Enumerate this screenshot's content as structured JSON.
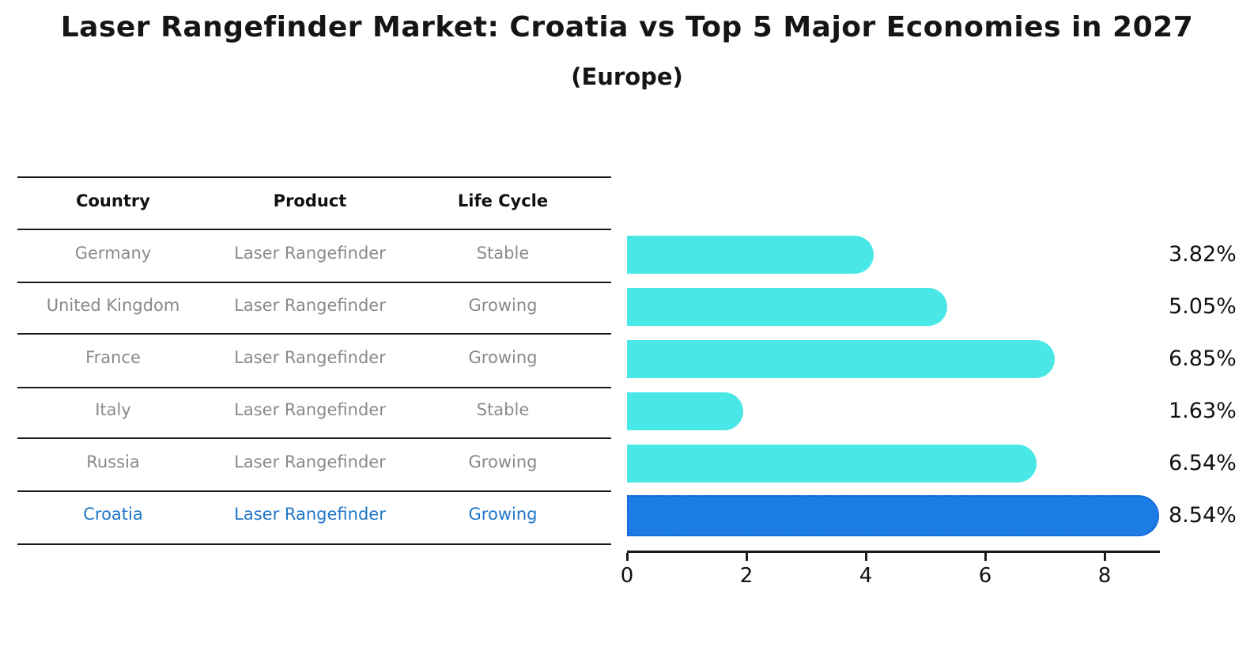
{
  "title": "Laser Rangefinder Market: Croatia vs Top 5 Major Economies in 2027",
  "subtitle": "(Europe)",
  "table": {
    "headers": [
      "Country",
      "Product",
      "Life Cycle"
    ],
    "rows": [
      {
        "country": "Germany",
        "product": "Laser Rangefinder",
        "life_cycle": "Stable",
        "highlight": false
      },
      {
        "country": "United Kingdom",
        "product": "Laser Rangefinder",
        "life_cycle": "Growing",
        "highlight": false
      },
      {
        "country": "France",
        "product": "Laser Rangefinder",
        "life_cycle": "Growing",
        "highlight": false
      },
      {
        "country": "Italy",
        "product": "Laser Rangefinder",
        "life_cycle": "Stable",
        "highlight": false
      },
      {
        "country": "Russia",
        "product": "Laser Rangefinder",
        "life_cycle": "Growing",
        "highlight": true
      },
      {
        "country": "Croatia",
        "product": "Laser Rangefinder",
        "life_cycle": "Growing",
        "highlight": true
      }
    ]
  },
  "chart_data": {
    "type": "bar",
    "orientation": "horizontal",
    "title": "Laser Rangefinder Market: Croatia vs Top 5 Major Economies in 2027 (Europe)",
    "categories": [
      "Germany",
      "United Kingdom",
      "France",
      "Italy",
      "Russia",
      "Croatia"
    ],
    "values": [
      3.82,
      5.05,
      6.85,
      1.63,
      6.54,
      8.54
    ],
    "value_labels": [
      "3.82%",
      "5.05%",
      "6.85%",
      "1.63%",
      "6.54%",
      "8.54%"
    ],
    "xlabel": "",
    "ylabel": "",
    "xlim": [
      0,
      9
    ],
    "xticks": [
      0,
      2,
      4,
      6,
      8
    ],
    "grid": false,
    "legend": false,
    "bar_color": "#4AE7E7",
    "highlight_index": 5,
    "highlight_bar_color": "#1C7CE6",
    "highlight_border_color": "#0d5ed1",
    "highlight_text_color": "#1f77c8",
    "row_text_color": "#8a8a8a"
  }
}
